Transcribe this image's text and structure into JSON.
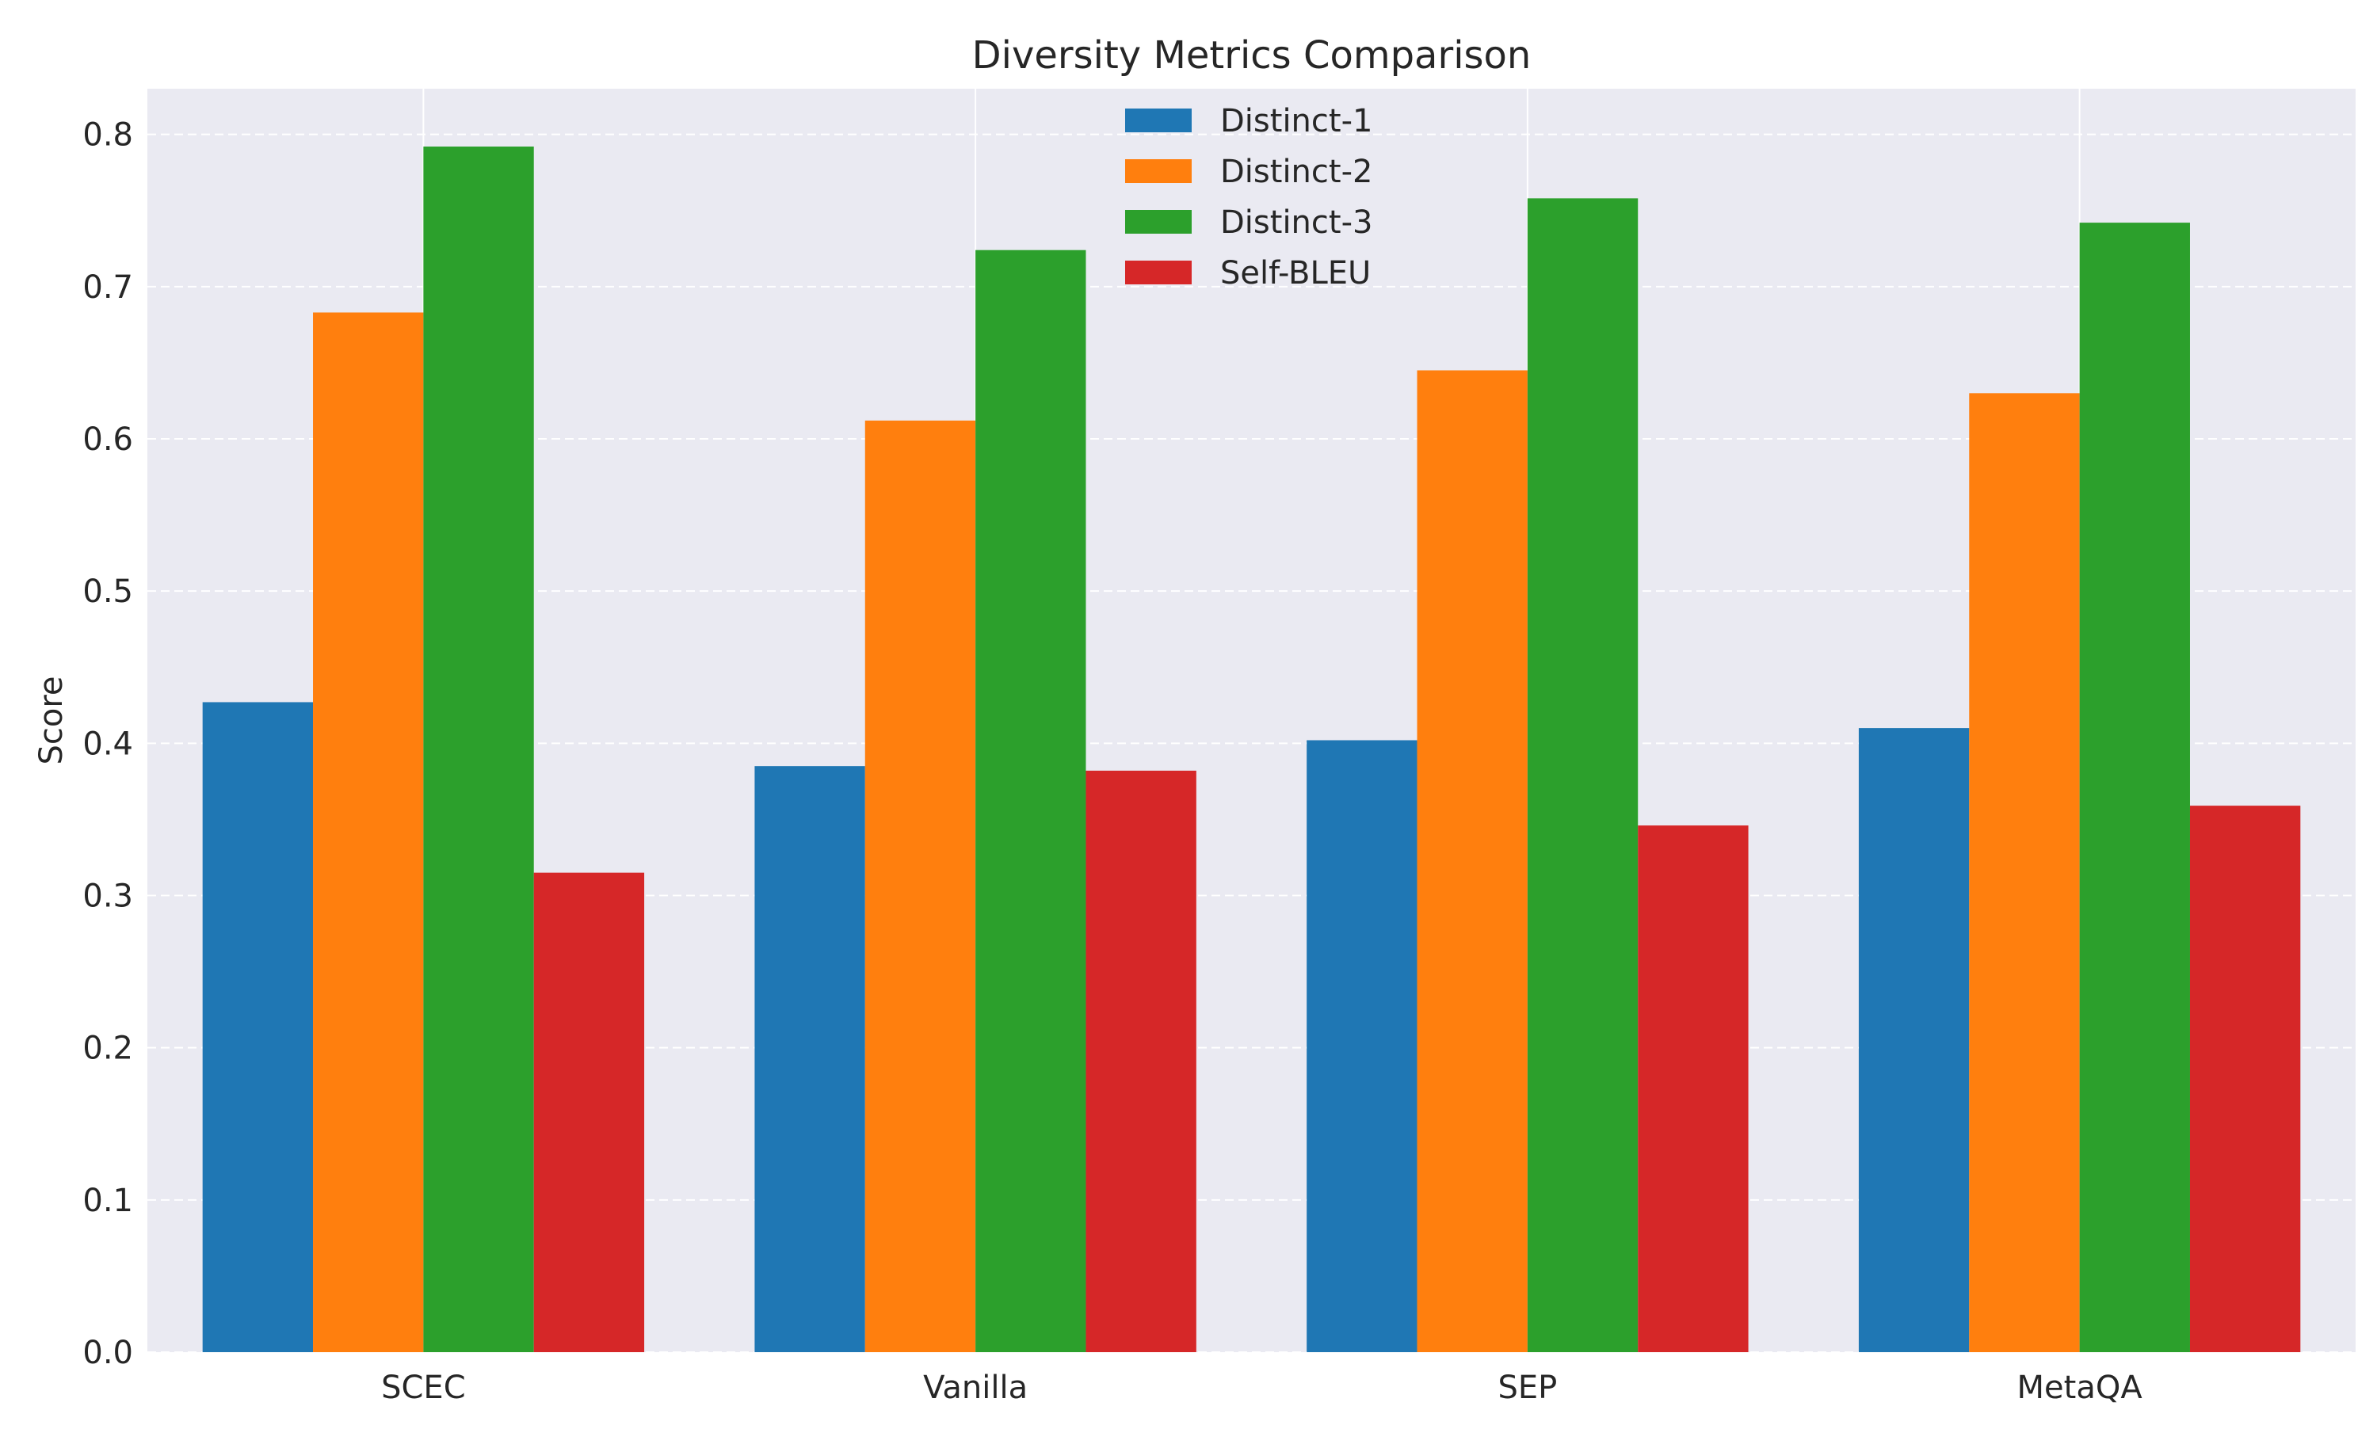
{
  "chart_data": {
    "type": "bar",
    "title": "Diversity Metrics Comparison",
    "xlabel": "",
    "ylabel": "Score",
    "categories": [
      "SCEC",
      "Vanilla",
      "SEP",
      "MetaQA"
    ],
    "series": [
      {
        "name": "Distinct-1",
        "color": "#1f77b4",
        "values": [
          0.427,
          0.385,
          0.402,
          0.41
        ]
      },
      {
        "name": "Distinct-2",
        "color": "#ff7f0e",
        "values": [
          0.683,
          0.612,
          0.645,
          0.63
        ]
      },
      {
        "name": "Distinct-3",
        "color": "#2ca02c",
        "values": [
          0.792,
          0.724,
          0.758,
          0.742
        ]
      },
      {
        "name": "Self-BLEU",
        "color": "#d62728",
        "values": [
          0.315,
          0.382,
          0.346,
          0.359
        ]
      }
    ],
    "ylim": [
      0,
      0.83
    ],
    "yticks": [
      "0.0",
      "0.1",
      "0.2",
      "0.3",
      "0.4",
      "0.5",
      "0.6",
      "0.7",
      "0.8"
    ],
    "grid": true,
    "legend_position": "top-center",
    "background_color": "#eaeaf2",
    "grid_color": "#ffffff"
  }
}
